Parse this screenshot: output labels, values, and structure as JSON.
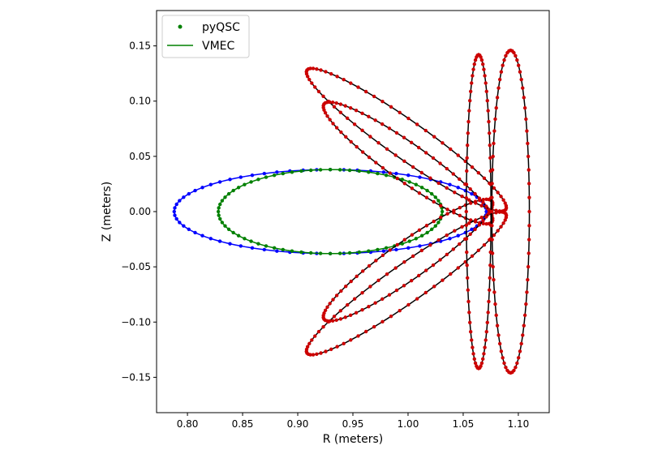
{
  "chart_data": {
    "type": "scatter",
    "xlabel": "R (meters)",
    "ylabel": "Z (meters)",
    "xlim": [
      0.772,
      1.128
    ],
    "ylim": [
      -0.182,
      0.182
    ],
    "xticks": [
      0.8,
      0.85,
      0.9,
      0.95,
      1.0,
      1.05,
      1.1
    ],
    "xtick_labels": [
      "0.80",
      "0.85",
      "0.90",
      "0.95",
      "1.00",
      "1.05",
      "1.10"
    ],
    "yticks": [
      -0.15,
      -0.1,
      -0.05,
      0.0,
      0.05,
      0.1,
      0.15
    ],
    "ytick_labels": [
      "−0.15",
      "−0.10",
      "−0.05",
      "0.00",
      "0.05",
      "0.10",
      "0.15"
    ],
    "grid": false,
    "legend": {
      "position": "top-left",
      "entries": [
        {
          "label": "pyQSC",
          "marker": "dot",
          "color": "#008000"
        },
        {
          "label": "VMEC",
          "marker": "line",
          "color": "#008000"
        }
      ]
    },
    "curves": [
      {
        "color": "#0000ff",
        "marker_color": "#0000ff",
        "center": [
          0.9295,
          0.0
        ],
        "a": 0.1415,
        "b": 0.038,
        "tilt_deg": 0
      },
      {
        "color": "#008000",
        "marker_color": "#008000",
        "center": [
          0.9295,
          0.0
        ],
        "a": 0.1015,
        "b": 0.038,
        "tilt_deg": 0
      },
      {
        "color": "#000000",
        "marker_color": "#cc0000",
        "center": [
          0.9985,
          0.065
        ],
        "a": 0.11,
        "b": 0.017,
        "tilt_deg": -35
      },
      {
        "color": "#000000",
        "marker_color": "#cc0000",
        "center": [
          1.0,
          0.044
        ],
        "a": 0.093,
        "b": 0.017,
        "tilt_deg": -35
      },
      {
        "color": "#000000",
        "marker_color": "#cc0000",
        "center": [
          0.9985,
          -0.065
        ],
        "a": 0.11,
        "b": 0.017,
        "tilt_deg": 35
      },
      {
        "color": "#000000",
        "marker_color": "#cc0000",
        "center": [
          1.0,
          -0.044
        ],
        "a": 0.093,
        "b": 0.017,
        "tilt_deg": 35
      },
      {
        "color": "#000000",
        "marker_color": "#cc0000",
        "center": [
          1.064,
          0.0
        ],
        "a": 0.142,
        "b": 0.0112,
        "tilt_deg": 90
      },
      {
        "color": "#000000",
        "marker_color": "#cc0000",
        "center": [
          1.093,
          0.0
        ],
        "a": 0.146,
        "b": 0.017,
        "tilt_deg": 90
      }
    ]
  }
}
